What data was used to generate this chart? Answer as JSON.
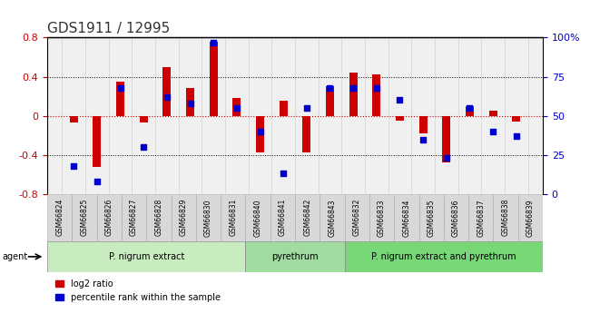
{
  "title": "GDS1911 / 12995",
  "samples": [
    "GSM66824",
    "GSM66825",
    "GSM66826",
    "GSM66827",
    "GSM66828",
    "GSM66829",
    "GSM66830",
    "GSM66831",
    "GSM66840",
    "GSM66841",
    "GSM66842",
    "GSM66843",
    "GSM66832",
    "GSM66833",
    "GSM66834",
    "GSM66835",
    "GSM66836",
    "GSM66837",
    "GSM66838",
    "GSM66839"
  ],
  "log2_ratio": [
    -0.07,
    -0.52,
    0.35,
    -0.07,
    0.5,
    0.28,
    0.76,
    0.18,
    -0.37,
    0.15,
    -0.37,
    0.3,
    0.44,
    0.42,
    -0.05,
    -0.18,
    -0.48,
    0.1,
    0.05,
    -0.06
  ],
  "percentile": [
    18,
    8,
    68,
    30,
    62,
    58,
    97,
    55,
    40,
    13,
    55,
    68,
    68,
    68,
    60,
    35,
    23,
    55,
    40,
    37
  ],
  "groups": [
    {
      "label": "P. nigrum extract",
      "start": 0,
      "end": 8,
      "color": "#b8e6b0"
    },
    {
      "label": "pyrethrum",
      "start": 8,
      "end": 12,
      "color": "#90d890"
    },
    {
      "label": "P. nigrum extract and pyrethrum",
      "start": 12,
      "end": 20,
      "color": "#60c860"
    }
  ],
  "ylim_left": [
    -0.8,
    0.8
  ],
  "ylim_right": [
    0,
    100
  ],
  "bar_color_red": "#cc0000",
  "dot_color_blue": "#0000cc",
  "zero_line_color": "#cc0000",
  "grid_color": "#000000",
  "bg_color": "#ffffff",
  "plot_bg": "#f0f0f0",
  "xlabel_fontsize": 7,
  "title_fontsize": 11,
  "legend_labels": [
    "log2 ratio",
    "percentile rank within the sample"
  ]
}
